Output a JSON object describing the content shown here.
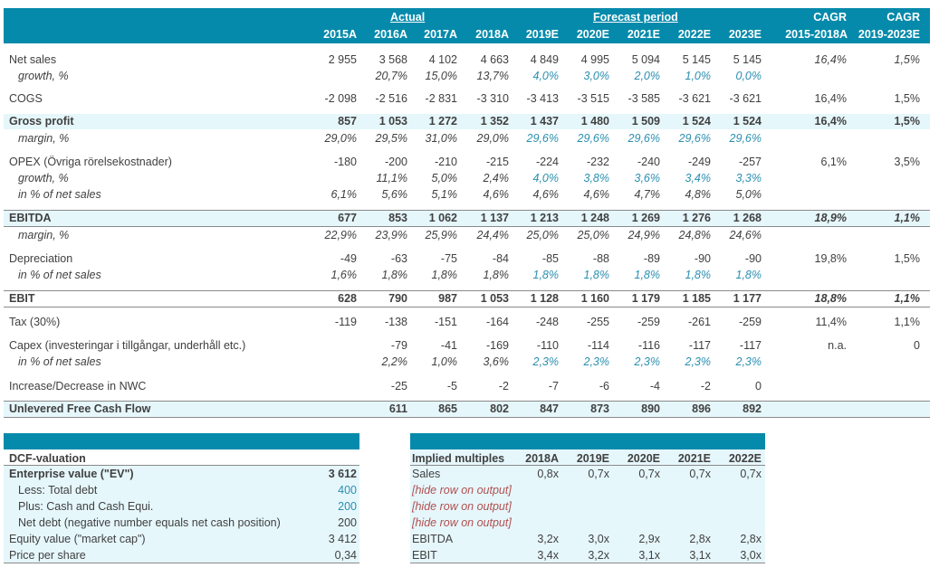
{
  "header": {
    "actual_label": "Actual",
    "forecast_label": "Forecast period",
    "cagr1_top": "CAGR",
    "cagr1_bottom": "2015-2018A",
    "cagr2_top": "CAGR",
    "cagr2_bottom": "2019-2023E",
    "years": [
      "2015A",
      "2016A",
      "2017A",
      "2018A",
      "2019E",
      "2020E",
      "2021E",
      "2022E",
      "2023E"
    ]
  },
  "rows": [
    {
      "label": "Net sales",
      "values": [
        "2 955",
        "3 568",
        "4 102",
        "4 663",
        "4 849",
        "4 995",
        "5 094",
        "5 145",
        "5 145"
      ],
      "cagr1": "16,4%",
      "cagr2": "1,5%"
    },
    {
      "label": "growth, %",
      "values": [
        "",
        "20,7%",
        "15,0%",
        "13,7%",
        "4,0%",
        "3,0%",
        "2,0%",
        "1,0%",
        "0,0%"
      ],
      "cagr1": "",
      "cagr2": ""
    },
    {
      "label": "COGS",
      "values": [
        "-2 098",
        "-2 516",
        "-2 831",
        "-3 310",
        "-3 413",
        "-3 515",
        "-3 585",
        "-3 621",
        "-3 621"
      ],
      "cagr1": "16,4%",
      "cagr2": "1,5%"
    },
    {
      "label": "Gross profit",
      "values": [
        "857",
        "1 053",
        "1 272",
        "1 352",
        "1 437",
        "1 480",
        "1 509",
        "1 524",
        "1 524"
      ],
      "cagr1": "16,4%",
      "cagr2": "1,5%"
    },
    {
      "label": "margin, %",
      "values": [
        "29,0%",
        "29,5%",
        "31,0%",
        "29,0%",
        "29,6%",
        "29,6%",
        "29,6%",
        "29,6%",
        "29,6%"
      ],
      "cagr1": "",
      "cagr2": ""
    },
    {
      "label": "OPEX (Övriga rörelsekostnader)",
      "values": [
        "-180",
        "-200",
        "-210",
        "-215",
        "-224",
        "-232",
        "-240",
        "-249",
        "-257"
      ],
      "cagr1": "6,1%",
      "cagr2": "3,5%"
    },
    {
      "label": "growth, %",
      "values": [
        "",
        "11,1%",
        "5,0%",
        "2,4%",
        "4,0%",
        "3,8%",
        "3,6%",
        "3,4%",
        "3,3%"
      ],
      "cagr1": "",
      "cagr2": ""
    },
    {
      "label": "in % of net sales",
      "values": [
        "6,1%",
        "5,6%",
        "5,1%",
        "4,6%",
        "4,6%",
        "4,6%",
        "4,7%",
        "4,8%",
        "5,0%"
      ],
      "cagr1": "",
      "cagr2": ""
    },
    {
      "label": "EBITDA",
      "values": [
        "677",
        "853",
        "1 062",
        "1 137",
        "1 213",
        "1 248",
        "1 269",
        "1 276",
        "1 268"
      ],
      "cagr1": "18,9%",
      "cagr2": "1,1%"
    },
    {
      "label": "margin, %",
      "values": [
        "22,9%",
        "23,9%",
        "25,9%",
        "24,4%",
        "25,0%",
        "25,0%",
        "24,9%",
        "24,8%",
        "24,6%"
      ],
      "cagr1": "",
      "cagr2": ""
    },
    {
      "label": "Depreciation",
      "values": [
        "-49",
        "-63",
        "-75",
        "-84",
        "-85",
        "-88",
        "-89",
        "-90",
        "-90"
      ],
      "cagr1": "19,8%",
      "cagr2": "1,5%"
    },
    {
      "label": "in % of net sales",
      "values": [
        "1,6%",
        "1,8%",
        "1,8%",
        "1,8%",
        "1,8%",
        "1,8%",
        "1,8%",
        "1,8%",
        "1,8%"
      ],
      "cagr1": "",
      "cagr2": ""
    },
    {
      "label": "EBIT",
      "values": [
        "628",
        "790",
        "987",
        "1 053",
        "1 128",
        "1 160",
        "1 179",
        "1 185",
        "1 177"
      ],
      "cagr1": "18,8%",
      "cagr2": "1,1%"
    },
    {
      "label": "Tax (30%)",
      "values": [
        "-119",
        "-138",
        "-151",
        "-164",
        "-248",
        "-255",
        "-259",
        "-261",
        "-259"
      ],
      "cagr1": "11,4%",
      "cagr2": "1,1%"
    },
    {
      "label": "Capex (investeringar i tillgångar, underhåll etc.)",
      "values": [
        "",
        "-79",
        "-41",
        "-169",
        "-110",
        "-114",
        "-116",
        "-117",
        "-117"
      ],
      "cagr1": "n.a.",
      "cagr2": "0"
    },
    {
      "label": "in % of net sales",
      "values": [
        "",
        "2,2%",
        "1,0%",
        "3,6%",
        "2,3%",
        "2,3%",
        "2,3%",
        "2,3%",
        "2,3%"
      ],
      "cagr1": "",
      "cagr2": ""
    },
    {
      "label": "Increase/Decrease in NWC",
      "values": [
        "",
        "-25",
        "-5",
        "-2",
        "-7",
        "-6",
        "-4",
        "-2",
        "0"
      ],
      "cagr1": "",
      "cagr2": ""
    },
    {
      "label": "Unlevered Free Cash Flow",
      "values": [
        "",
        "611",
        "865",
        "802",
        "847",
        "873",
        "890",
        "896",
        "892"
      ],
      "cagr1": "",
      "cagr2": ""
    }
  ],
  "dcf": {
    "title": "DCF-valuation",
    "items": [
      {
        "label": "Enterprise value (\"EV\")",
        "value": "3 612"
      },
      {
        "label": "Less: Total debt",
        "value": "400"
      },
      {
        "label": "Plus: Cash and Cash Equi.",
        "value": "200"
      },
      {
        "label": "Net debt (negative number equals net cash position)",
        "value": "200"
      },
      {
        "label": "Equity value (\"market cap\")",
        "value": "3 412"
      },
      {
        "label": "Price per share",
        "value": "0,34"
      }
    ]
  },
  "multiples": {
    "title": "Implied multiples",
    "years": [
      "2018A",
      "2019E",
      "2020E",
      "2021E",
      "2022E"
    ],
    "rows": [
      {
        "label": "Sales",
        "values": [
          "0,8x",
          "0,7x",
          "0,7x",
          "0,7x",
          "0,7x"
        ]
      },
      {
        "label": "[hide row on output]",
        "values": [
          "",
          "",
          "",
          "",
          ""
        ]
      },
      {
        "label": "[hide row on output]",
        "values": [
          "",
          "",
          "",
          "",
          ""
        ]
      },
      {
        "label": "[hide row on output]",
        "values": [
          "",
          "",
          "",
          "",
          ""
        ]
      },
      {
        "label": "EBITDA",
        "values": [
          "3,2x",
          "3,0x",
          "2,9x",
          "2,8x",
          "2,8x"
        ]
      },
      {
        "label": "EBIT",
        "values": [
          "3,4x",
          "3,2x",
          "3,1x",
          "3,1x",
          "3,0x"
        ]
      }
    ]
  },
  "colors": {
    "header": "#068aab",
    "band": "#e6f7fc",
    "forecast_input": "#2a8fb0",
    "hide_note": "#b05050"
  }
}
